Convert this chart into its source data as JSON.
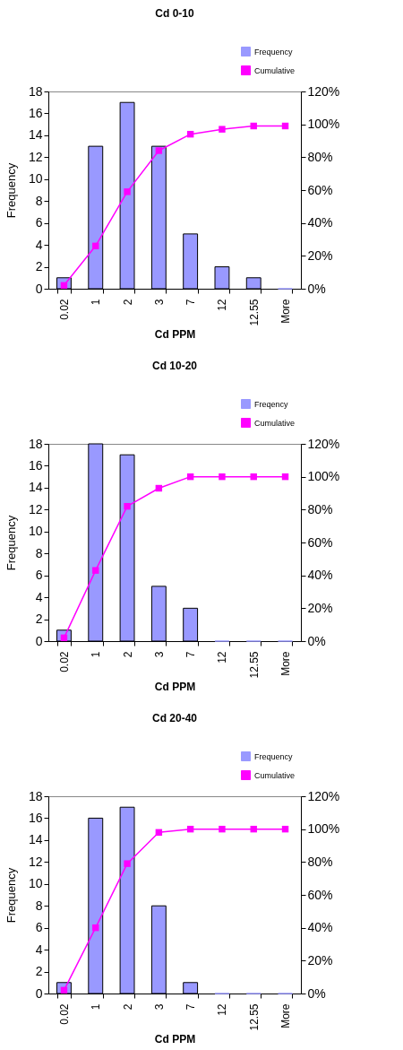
{
  "chart_data": [
    {
      "type": "bar",
      "title": "Cd 0-10",
      "xlabel": "Cd PPM",
      "ylabel": "Frequency",
      "categories": [
        "0.02",
        "1",
        "2",
        "3",
        "7",
        "12",
        "12.55",
        "More"
      ],
      "ylim": [
        0,
        18
      ],
      "yticks": [
        0,
        2,
        4,
        6,
        8,
        10,
        12,
        14,
        16,
        18
      ],
      "y2lim": [
        0,
        120
      ],
      "y2ticks": [
        {
          "value": 0,
          "label": "0%"
        },
        {
          "value": 20,
          "label": "20%"
        },
        {
          "value": 40,
          "label": "40%"
        },
        {
          "value": 60,
          "label": "60%"
        },
        {
          "value": 80,
          "label": "80%"
        },
        {
          "value": 100,
          "label": "100%"
        },
        {
          "value": 120,
          "label": "120%"
        }
      ],
      "legend": "top right",
      "marker": "square",
      "series": [
        {
          "name": "Frequency",
          "color": "#9999ff",
          "values": [
            1,
            13,
            17,
            13,
            5,
            2,
            1,
            0
          ]
        },
        {
          "name": "Cumulative",
          "type": "line",
          "axis": "y2",
          "color": "#ff00ff",
          "values": [
            2,
            26,
            59,
            84,
            94,
            97,
            99,
            99
          ]
        }
      ]
    },
    {
      "type": "bar",
      "title": "Cd 10-20",
      "xlabel": "Cd PPM",
      "ylabel": "Frequency",
      "categories": [
        "0.02",
        "1",
        "2",
        "3",
        "7",
        "12",
        "12.55",
        "More"
      ],
      "ylim": [
        0,
        18
      ],
      "yticks": [
        0,
        2,
        4,
        6,
        8,
        10,
        12,
        14,
        16,
        18
      ],
      "y2lim": [
        0,
        120
      ],
      "y2ticks": [
        {
          "value": 0,
          "label": "0%"
        },
        {
          "value": 20,
          "label": "20%"
        },
        {
          "value": 40,
          "label": "40%"
        },
        {
          "value": 60,
          "label": "60%"
        },
        {
          "value": 80,
          "label": "80%"
        },
        {
          "value": 100,
          "label": "100%"
        },
        {
          "value": 120,
          "label": "120%"
        }
      ],
      "legend": "top right",
      "marker": "square",
      "series": [
        {
          "name": "Freqency",
          "color": "#9999ff",
          "values": [
            1,
            18,
            17,
            5,
            3,
            0,
            0,
            0
          ]
        },
        {
          "name": "Cumulative",
          "type": "line",
          "axis": "y2",
          "color": "#ff00ff",
          "values": [
            2,
            43,
            82,
            93,
            100,
            100,
            100,
            100
          ]
        }
      ]
    },
    {
      "type": "bar",
      "title": "Cd 20-40",
      "xlabel": "Cd PPM",
      "ylabel": "Frequency",
      "categories": [
        "0.02",
        "1",
        "2",
        "3",
        "7",
        "12",
        "12.55",
        "More"
      ],
      "ylim": [
        0,
        18
      ],
      "yticks": [
        0,
        2,
        4,
        6,
        8,
        10,
        12,
        14,
        16,
        18
      ],
      "y2lim": [
        0,
        120
      ],
      "y2ticks": [
        {
          "value": 0,
          "label": "0%"
        },
        {
          "value": 20,
          "label": "20%"
        },
        {
          "value": 40,
          "label": "40%"
        },
        {
          "value": 60,
          "label": "60%"
        },
        {
          "value": 80,
          "label": "80%"
        },
        {
          "value": 100,
          "label": "100%"
        },
        {
          "value": 120,
          "label": "120%"
        }
      ],
      "legend": "top right",
      "marker": "square",
      "series": [
        {
          "name": "Frequency",
          "color": "#9999ff",
          "values": [
            1,
            16,
            17,
            8,
            1,
            0,
            0,
            0
          ]
        },
        {
          "name": "Cumulative",
          "type": "line",
          "axis": "y2",
          "color": "#ff00ff",
          "values": [
            2,
            40,
            79,
            98,
            100,
            100,
            100,
            100
          ]
        }
      ]
    }
  ]
}
